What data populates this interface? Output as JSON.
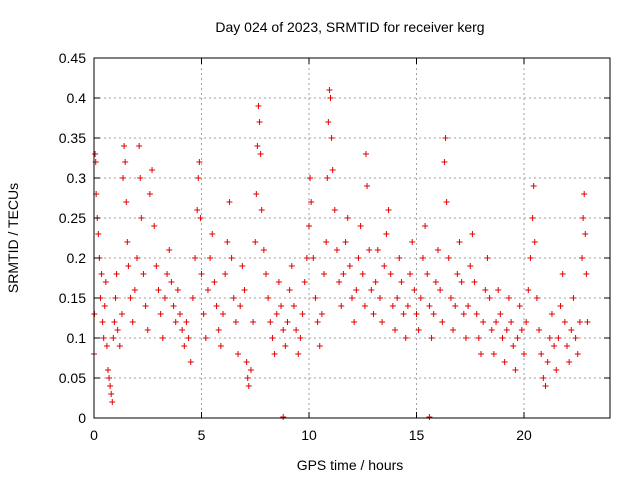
{
  "chart_data": {
    "type": "scatter",
    "title": "Day 024 of 2023, SRMTID for receiver kerg",
    "xlabel": "GPS time / hours",
    "ylabel": "SRMTID / TECUs",
    "xlim": [
      0,
      24
    ],
    "ylim": [
      0,
      0.45
    ],
    "xticks": [
      0,
      5,
      10,
      15,
      20
    ],
    "xtick_labels": [
      "0",
      "5",
      "10",
      "15",
      "20"
    ],
    "yticks": [
      0,
      0.05,
      0.1,
      0.15,
      0.2,
      0.25,
      0.3,
      0.35,
      0.4,
      0.45
    ],
    "ytick_labels": [
      "0",
      "0.05",
      "0.1",
      "0.15",
      "0.2",
      "0.25",
      "0.3",
      "0.35",
      "0.4",
      "0.45"
    ],
    "grid": true,
    "marker": "plus",
    "color": "#e00000",
    "series": [
      {
        "name": "SRMTID",
        "points": [
          [
            0.0,
            0.08
          ],
          [
            0.02,
            0.13
          ],
          [
            0.05,
            0.33
          ],
          [
            0.08,
            0.32
          ],
          [
            0.1,
            0.28
          ],
          [
            0.15,
            0.25
          ],
          [
            0.2,
            0.23
          ],
          [
            0.25,
            0.2
          ],
          [
            0.3,
            0.15
          ],
          [
            0.35,
            0.18
          ],
          [
            0.4,
            0.12
          ],
          [
            0.45,
            0.1
          ],
          [
            0.5,
            0.14
          ],
          [
            0.55,
            0.17
          ],
          [
            0.6,
            0.09
          ],
          [
            0.65,
            0.06
          ],
          [
            0.7,
            0.05
          ],
          [
            0.75,
            0.04
          ],
          [
            0.8,
            0.03
          ],
          [
            0.85,
            0.02
          ],
          [
            0.9,
            0.1
          ],
          [
            0.95,
            0.12
          ],
          [
            1.0,
            0.15
          ],
          [
            1.05,
            0.18
          ],
          [
            1.1,
            0.11
          ],
          [
            1.2,
            0.09
          ],
          [
            1.3,
            0.13
          ],
          [
            1.35,
            0.3
          ],
          [
            1.4,
            0.34
          ],
          [
            1.45,
            0.32
          ],
          [
            1.5,
            0.27
          ],
          [
            1.55,
            0.22
          ],
          [
            1.6,
            0.19
          ],
          [
            1.7,
            0.15
          ],
          [
            1.8,
            0.12
          ],
          [
            1.9,
            0.16
          ],
          [
            2.0,
            0.2
          ],
          [
            2.1,
            0.34
          ],
          [
            2.15,
            0.3
          ],
          [
            2.2,
            0.25
          ],
          [
            2.3,
            0.18
          ],
          [
            2.4,
            0.14
          ],
          [
            2.5,
            0.11
          ],
          [
            2.6,
            0.28
          ],
          [
            2.7,
            0.31
          ],
          [
            2.8,
            0.24
          ],
          [
            2.9,
            0.19
          ],
          [
            3.0,
            0.16
          ],
          [
            3.1,
            0.13
          ],
          [
            3.2,
            0.1
          ],
          [
            3.3,
            0.15
          ],
          [
            3.4,
            0.18
          ],
          [
            3.5,
            0.21
          ],
          [
            3.6,
            0.17
          ],
          [
            3.7,
            0.14
          ],
          [
            3.8,
            0.12
          ],
          [
            3.9,
            0.16
          ],
          [
            4.0,
            0.13
          ],
          [
            4.1,
            0.11
          ],
          [
            4.2,
            0.09
          ],
          [
            4.3,
            0.12
          ],
          [
            4.4,
            0.1
          ],
          [
            4.5,
            0.07
          ],
          [
            4.6,
            0.15
          ],
          [
            4.7,
            0.2
          ],
          [
            4.8,
            0.26
          ],
          [
            4.85,
            0.3
          ],
          [
            4.9,
            0.32
          ],
          [
            4.95,
            0.25
          ],
          [
            5.0,
            0.18
          ],
          [
            5.1,
            0.13
          ],
          [
            5.2,
            0.1
          ],
          [
            5.3,
            0.16
          ],
          [
            5.4,
            0.2
          ],
          [
            5.5,
            0.23
          ],
          [
            5.6,
            0.17
          ],
          [
            5.7,
            0.14
          ],
          [
            5.8,
            0.11
          ],
          [
            5.9,
            0.09
          ],
          [
            6.0,
            0.13
          ],
          [
            6.1,
            0.18
          ],
          [
            6.2,
            0.22
          ],
          [
            6.3,
            0.27
          ],
          [
            6.4,
            0.2
          ],
          [
            6.5,
            0.15
          ],
          [
            6.6,
            0.12
          ],
          [
            6.7,
            0.08
          ],
          [
            6.8,
            0.14
          ],
          [
            6.9,
            0.19
          ],
          [
            7.0,
            0.16
          ],
          [
            7.1,
            0.07
          ],
          [
            7.15,
            0.05
          ],
          [
            7.2,
            0.04
          ],
          [
            7.3,
            0.06
          ],
          [
            7.4,
            0.12
          ],
          [
            7.5,
            0.22
          ],
          [
            7.55,
            0.28
          ],
          [
            7.6,
            0.34
          ],
          [
            7.65,
            0.39
          ],
          [
            7.7,
            0.37
          ],
          [
            7.75,
            0.33
          ],
          [
            7.8,
            0.26
          ],
          [
            7.9,
            0.21
          ],
          [
            8.0,
            0.18
          ],
          [
            8.1,
            0.15
          ],
          [
            8.2,
            0.12
          ],
          [
            8.3,
            0.1
          ],
          [
            8.4,
            0.08
          ],
          [
            8.5,
            0.13
          ],
          [
            8.6,
            0.17
          ],
          [
            8.7,
            0.14
          ],
          [
            8.8,
            0.11
          ],
          [
            8.9,
            0.09
          ],
          [
            9.0,
            0.12
          ],
          [
            9.1,
            0.16
          ],
          [
            9.2,
            0.19
          ],
          [
            9.3,
            0.14
          ],
          [
            9.4,
            0.11
          ],
          [
            9.5,
            0.08
          ],
          [
            9.6,
            0.1
          ],
          [
            9.7,
            0.13
          ],
          [
            9.8,
            0.17
          ],
          [
            9.9,
            0.2
          ],
          [
            10.0,
            0.24
          ],
          [
            10.05,
            0.3
          ],
          [
            10.1,
            0.27
          ],
          [
            10.2,
            0.2
          ],
          [
            10.3,
            0.15
          ],
          [
            10.4,
            0.12
          ],
          [
            10.5,
            0.09
          ],
          [
            10.6,
            0.13
          ],
          [
            10.7,
            0.18
          ],
          [
            10.8,
            0.22
          ],
          [
            10.85,
            0.3
          ],
          [
            10.9,
            0.37
          ],
          [
            10.95,
            0.41
          ],
          [
            11.0,
            0.4
          ],
          [
            11.05,
            0.35
          ],
          [
            11.1,
            0.31
          ],
          [
            11.2,
            0.26
          ],
          [
            11.3,
            0.21
          ],
          [
            11.4,
            0.17
          ],
          [
            11.5,
            0.14
          ],
          [
            11.6,
            0.18
          ],
          [
            11.7,
            0.22
          ],
          [
            11.8,
            0.25
          ],
          [
            11.9,
            0.19
          ],
          [
            12.0,
            0.15
          ],
          [
            12.1,
            0.12
          ],
          [
            12.2,
            0.16
          ],
          [
            12.3,
            0.2
          ],
          [
            12.4,
            0.24
          ],
          [
            12.5,
            0.18
          ],
          [
            12.6,
            0.14
          ],
          [
            12.65,
            0.33
          ],
          [
            12.7,
            0.29
          ],
          [
            12.8,
            0.21
          ],
          [
            12.9,
            0.16
          ],
          [
            13.0,
            0.13
          ],
          [
            13.1,
            0.17
          ],
          [
            13.2,
            0.21
          ],
          [
            13.3,
            0.15
          ],
          [
            13.4,
            0.12
          ],
          [
            13.5,
            0.19
          ],
          [
            13.6,
            0.23
          ],
          [
            13.7,
            0.26
          ],
          [
            13.8,
            0.18
          ],
          [
            13.9,
            0.14
          ],
          [
            14.0,
            0.11
          ],
          [
            14.1,
            0.15
          ],
          [
            14.2,
            0.2
          ],
          [
            14.3,
            0.17
          ],
          [
            14.4,
            0.13
          ],
          [
            14.5,
            0.1
          ],
          [
            14.6,
            0.14
          ],
          [
            14.7,
            0.18
          ],
          [
            14.8,
            0.22
          ],
          [
            14.9,
            0.16
          ],
          [
            15.0,
            0.13
          ],
          [
            15.1,
            0.11
          ],
          [
            15.2,
            0.15
          ],
          [
            15.3,
            0.2
          ],
          [
            15.4,
            0.24
          ],
          [
            15.5,
            0.18
          ],
          [
            15.6,
            0.14
          ],
          [
            15.7,
            0.1
          ],
          [
            15.8,
            0.13
          ],
          [
            15.9,
            0.17
          ],
          [
            16.0,
            0.21
          ],
          [
            16.1,
            0.16
          ],
          [
            16.2,
            0.12
          ],
          [
            16.3,
            0.32
          ],
          [
            16.35,
            0.35
          ],
          [
            16.4,
            0.27
          ],
          [
            16.5,
            0.2
          ],
          [
            16.6,
            0.15
          ],
          [
            16.7,
            0.11
          ],
          [
            16.8,
            0.14
          ],
          [
            16.9,
            0.18
          ],
          [
            17.0,
            0.22
          ],
          [
            17.1,
            0.17
          ],
          [
            17.2,
            0.13
          ],
          [
            17.3,
            0.1
          ],
          [
            17.4,
            0.14
          ],
          [
            17.5,
            0.19
          ],
          [
            17.6,
            0.23
          ],
          [
            17.7,
            0.17
          ],
          [
            17.8,
            0.13
          ],
          [
            17.9,
            0.1
          ],
          [
            18.0,
            0.08
          ],
          [
            18.1,
            0.12
          ],
          [
            18.2,
            0.16
          ],
          [
            18.3,
            0.2
          ],
          [
            18.4,
            0.15
          ],
          [
            18.5,
            0.11
          ],
          [
            18.6,
            0.08
          ],
          [
            18.7,
            0.12
          ],
          [
            18.8,
            0.16
          ],
          [
            18.9,
            0.13
          ],
          [
            19.0,
            0.1
          ],
          [
            19.1,
            0.07
          ],
          [
            19.2,
            0.11
          ],
          [
            19.3,
            0.15
          ],
          [
            19.4,
            0.12
          ],
          [
            19.5,
            0.09
          ],
          [
            19.6,
            0.06
          ],
          [
            19.7,
            0.1
          ],
          [
            19.8,
            0.14
          ],
          [
            19.9,
            0.11
          ],
          [
            20.0,
            0.08
          ],
          [
            20.1,
            0.12
          ],
          [
            20.2,
            0.16
          ],
          [
            20.3,
            0.2
          ],
          [
            20.4,
            0.25
          ],
          [
            20.45,
            0.29
          ],
          [
            20.5,
            0.22
          ],
          [
            20.6,
            0.15
          ],
          [
            20.7,
            0.11
          ],
          [
            20.8,
            0.08
          ],
          [
            20.9,
            0.05
          ],
          [
            21.0,
            0.04
          ],
          [
            21.1,
            0.07
          ],
          [
            21.2,
            0.1
          ],
          [
            21.3,
            0.13
          ],
          [
            21.4,
            0.09
          ],
          [
            21.5,
            0.06
          ],
          [
            21.6,
            0.1
          ],
          [
            21.7,
            0.14
          ],
          [
            21.8,
            0.18
          ],
          [
            21.9,
            0.12
          ],
          [
            22.0,
            0.09
          ],
          [
            22.1,
            0.07
          ],
          [
            22.2,
            0.11
          ],
          [
            22.3,
            0.15
          ],
          [
            22.4,
            0.1
          ],
          [
            22.5,
            0.08
          ],
          [
            22.6,
            0.12
          ],
          [
            22.7,
            0.2
          ],
          [
            22.75,
            0.25
          ],
          [
            22.8,
            0.28
          ],
          [
            22.85,
            0.23
          ],
          [
            22.9,
            0.18
          ],
          [
            22.95,
            0.12
          ]
        ]
      }
    ],
    "outliers_at_zero": [
      [
        8.8,
        0.0
      ],
      [
        15.6,
        0.0
      ]
    ]
  }
}
